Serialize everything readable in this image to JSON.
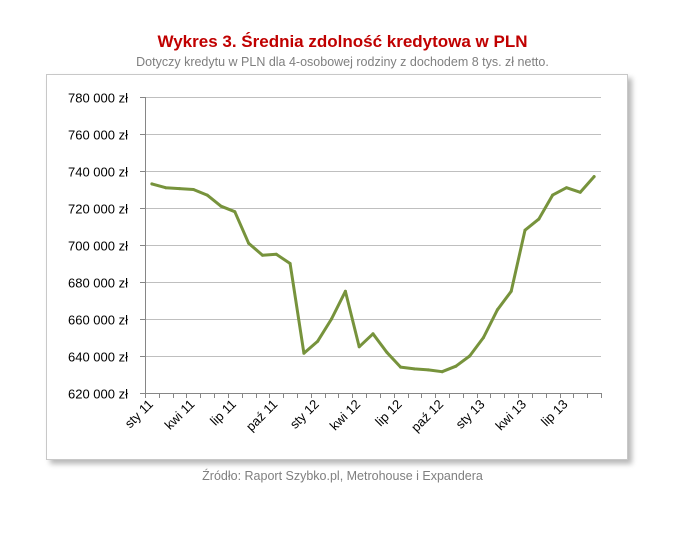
{
  "header": {
    "title": "Wykres 3. Średnia zdolność kredytowa w PLN",
    "subtitle": "Dotyczy kredytu w PLN dla 4-osobowej rodziny z dochodem 8 tys. zł netto."
  },
  "footer": {
    "source": "Źródło: Raport Szybko.pl, Metrohouse i Expandera"
  },
  "chart_data": {
    "type": "line",
    "title": "Wykres 3. Średnia zdolność kredytowa w PLN",
    "subtitle": "Dotyczy kredytu w PLN dla 4-osobowej rodziny z dochodem 8 tys. zł netto.",
    "xlabel": "",
    "ylabel": "",
    "ylim": [
      620000,
      780000
    ],
    "yticks": [
      620000,
      640000,
      660000,
      680000,
      700000,
      720000,
      740000,
      760000,
      780000
    ],
    "ytick_labels": [
      "620 000 zł",
      "640 000 zł",
      "660 000 zł",
      "680 000 zł",
      "700 000 zł",
      "720 000 zł",
      "740 000 zł",
      "760 000 zł",
      "780 000 zł"
    ],
    "x_tick_labels": [
      "sty 11",
      "kwi 11",
      "lip 11",
      "paź 11",
      "sty 12",
      "kwi 12",
      "lip 12",
      "paź 12",
      "sty 13",
      "kwi 13",
      "lip 13"
    ],
    "x_tick_every": 3,
    "grid": true,
    "legend": "none",
    "line_color": "#77933c",
    "series": [
      {
        "values": [
          733000,
          731000,
          730500,
          730000,
          727000,
          721000,
          718000,
          701000,
          694500,
          695000,
          690000,
          641500,
          648000,
          660000,
          675000,
          645000,
          652000,
          642000,
          634000,
          633000,
          632500,
          631500,
          634500,
          640000,
          650000,
          665000,
          675000,
          708000,
          714000,
          727000,
          731000,
          728500,
          737000
        ]
      }
    ]
  }
}
